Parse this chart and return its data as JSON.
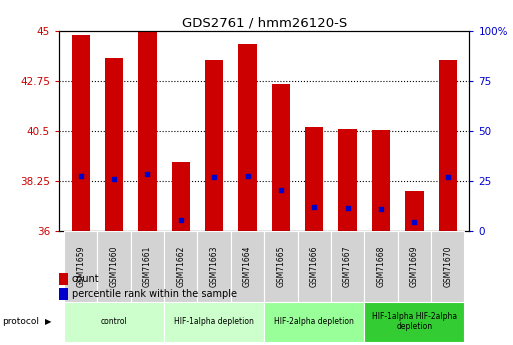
{
  "title": "GDS2761 / hmm26120-S",
  "samples": [
    "GSM71659",
    "GSM71660",
    "GSM71661",
    "GSM71662",
    "GSM71663",
    "GSM71664",
    "GSM71665",
    "GSM71666",
    "GSM71667",
    "GSM71668",
    "GSM71669",
    "GSM71670"
  ],
  "count_values": [
    44.8,
    43.8,
    44.95,
    39.1,
    43.7,
    44.4,
    42.6,
    40.7,
    40.6,
    40.55,
    37.8,
    43.7
  ],
  "percentile_values": [
    38.5,
    38.35,
    38.55,
    36.5,
    38.45,
    38.5,
    37.85,
    37.1,
    37.05,
    37.0,
    36.4,
    38.45
  ],
  "ylim_left": [
    36,
    45
  ],
  "yticks_left": [
    36,
    38.25,
    40.5,
    42.75,
    45
  ],
  "ylim_right": [
    0,
    100
  ],
  "yticks_right": [
    0,
    25,
    50,
    75,
    100
  ],
  "bar_color": "#cc0000",
  "percentile_color": "#0000cc",
  "bar_width": 0.55,
  "protocols": [
    {
      "label": "control",
      "samples": [
        0,
        1,
        2
      ],
      "color": "#ccffcc"
    },
    {
      "label": "HIF-1alpha depletion",
      "samples": [
        3,
        4,
        5
      ],
      "color": "#ccffcc"
    },
    {
      "label": "HIF-2alpha depletion",
      "samples": [
        6,
        7,
        8
      ],
      "color": "#99ff99"
    },
    {
      "label": "HIF-1alpha HIF-2alpha\ndepletion",
      "samples": [
        9,
        10,
        11
      ],
      "color": "#33cc33"
    }
  ],
  "protocol_label": "protocol",
  "legend_count_label": "count",
  "legend_percentile_label": "percentile rank within the sample",
  "grid_color": "#000000",
  "bg_color": "#ffffff",
  "tick_label_color_left": "#cc0000",
  "tick_label_color_right": "#0000cc",
  "sample_box_color": "#d3d3d3"
}
